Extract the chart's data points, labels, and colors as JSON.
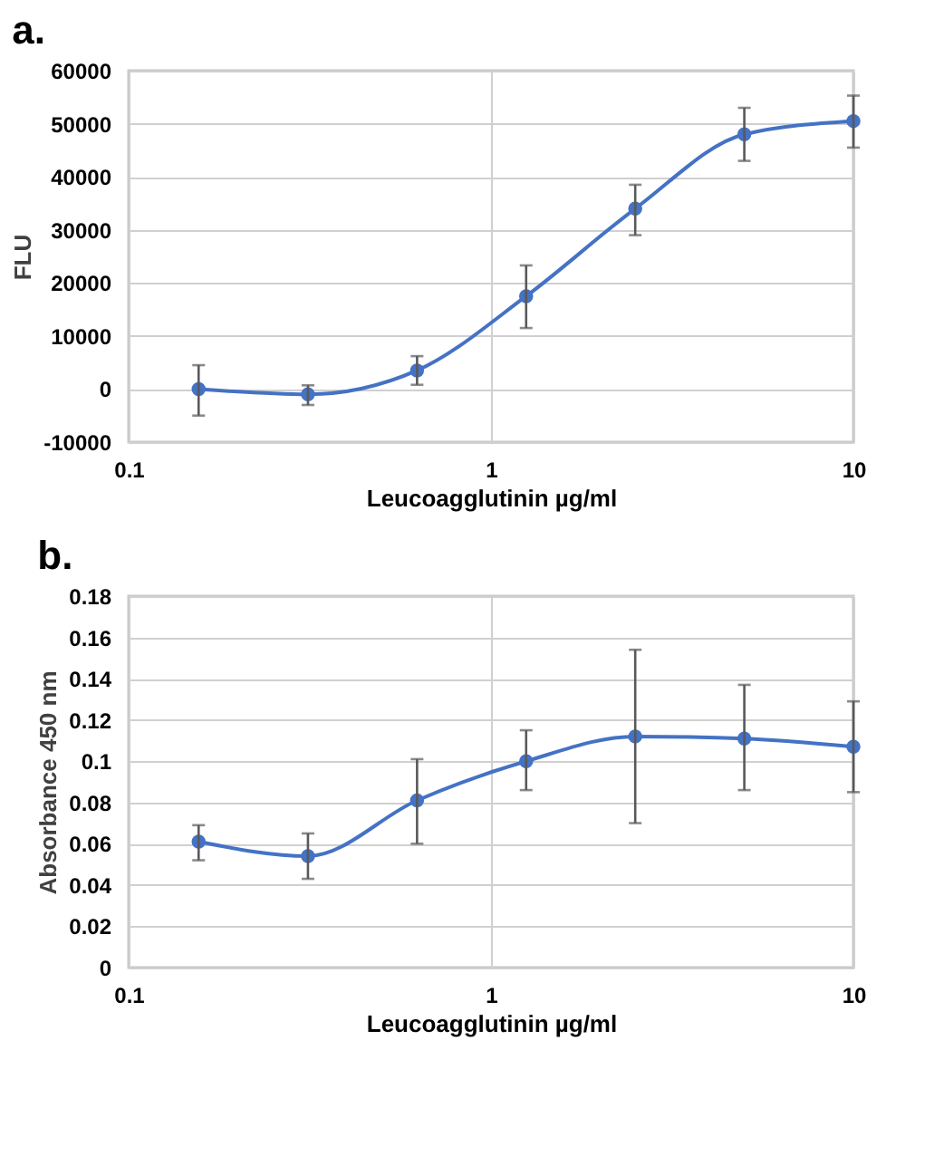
{
  "chart_data": [
    {
      "type": "line",
      "title": "a.",
      "xlabel": "Leucoagglutinin µg/ml",
      "ylabel": "FLU",
      "log": "x",
      "grid": true,
      "marker": "circle",
      "x": [
        0.156,
        0.3125,
        0.625,
        1.25,
        2.5,
        5,
        10
      ],
      "xlim": [
        0.1,
        10
      ],
      "xticks": [
        0.1,
        1,
        10
      ],
      "ylim": [
        -10000,
        60000
      ],
      "yticks": [
        -10000,
        0,
        10000,
        20000,
        30000,
        40000,
        50000,
        60000
      ],
      "series": [
        {
          "color": "#4472c4",
          "values": [
            0,
            -1000,
            3500,
            17500,
            34000,
            48000,
            50500
          ],
          "errors": [
            [
              -5000,
              4500
            ],
            [
              -3000,
              700
            ],
            [
              800,
              6200
            ],
            [
              11500,
              23300
            ],
            [
              29000,
              38500
            ],
            [
              43000,
              53000
            ],
            [
              45500,
              55300
            ]
          ]
        }
      ]
    },
    {
      "type": "line",
      "title": "b.",
      "xlabel": "Leucoagglutinin µg/ml",
      "ylabel": "Absorbance  450 nm",
      "log": "x",
      "grid": true,
      "marker": "circle",
      "x": [
        0.156,
        0.3125,
        0.625,
        1.25,
        2.5,
        5,
        10
      ],
      "xlim": [
        0.1,
        10
      ],
      "xticks": [
        0.1,
        1,
        10
      ],
      "ylim": [
        0,
        0.18
      ],
      "yticks": [
        0,
        0.02,
        0.04,
        0.06,
        0.08,
        0.1,
        0.12,
        0.14,
        0.16,
        0.18
      ],
      "series": [
        {
          "color": "#4472c4",
          "values": [
            0.061,
            0.054,
            0.081,
            0.1,
            0.112,
            0.111,
            0.107
          ],
          "errors": [
            [
              0.052,
              0.069
            ],
            [
              0.043,
              0.065
            ],
            [
              0.06,
              0.101
            ],
            [
              0.086,
              0.115
            ],
            [
              0.07,
              0.154
            ],
            [
              0.086,
              0.137
            ],
            [
              0.085,
              0.129
            ]
          ]
        }
      ]
    }
  ]
}
